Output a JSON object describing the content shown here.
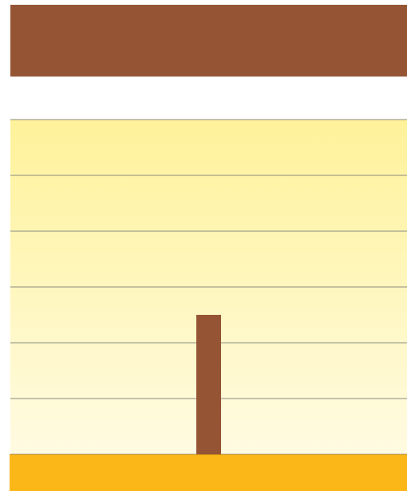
{
  "chart_data": {
    "type": "bar",
    "categories": [
      null
    ],
    "values": [
      2.5
    ],
    "color": "#955535",
    "ylim": [
      0,
      6
    ],
    "yticks": [
      0,
      1,
      2,
      3,
      4,
      5,
      6
    ],
    "grid": true
  }
}
